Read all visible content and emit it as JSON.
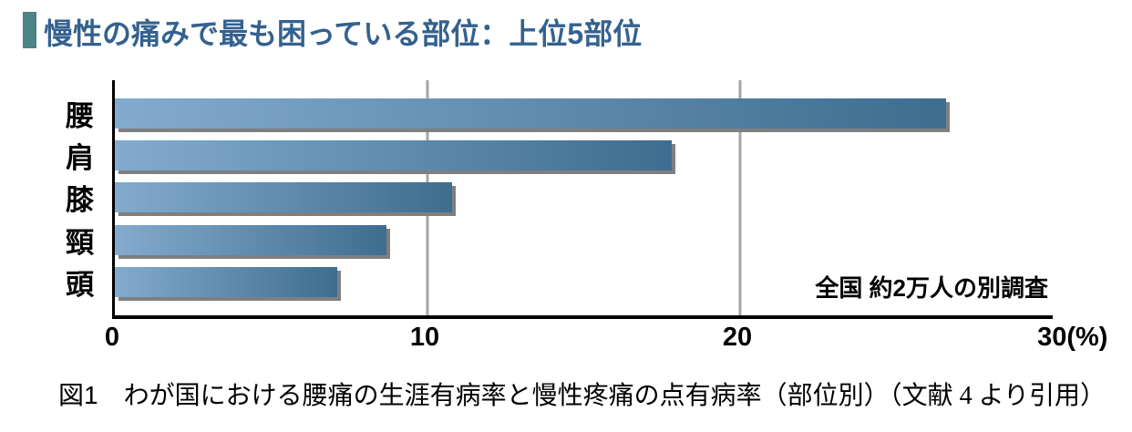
{
  "title": {
    "text": "慢性の痛みで最も困っている部位：上位5部位",
    "text_color": "#34618F",
    "marker_color": "#4C8384"
  },
  "chart_data": {
    "type": "bar",
    "orientation": "horizontal",
    "title": "慢性の痛みで最も困っている部位：上位5部位",
    "categories": [
      "腰",
      "肩",
      "膝",
      "頸",
      "頭"
    ],
    "values": [
      26.6,
      17.8,
      10.8,
      8.7,
      7.1
    ],
    "unit": "%",
    "xlim": [
      0,
      30
    ],
    "x_ticks": [
      {
        "label": "0",
        "value": 0
      },
      {
        "label": "10",
        "value": 10
      },
      {
        "label": "20",
        "value": 20
      },
      {
        "label": "30(%)",
        "value": 30
      }
    ],
    "grid_values": [
      10,
      20
    ],
    "grid_on": true,
    "annotation": "全国 約2万人の別調査",
    "colors": {
      "bar_gradient_start": "#83ABCE",
      "bar_gradient_end": "#3E6D90",
      "bar_shadow": "#7F7F7F",
      "gridline": "#A6A6A6",
      "axis": "#000000"
    }
  },
  "caption": {
    "main": "図1　わが国における腰痛の生涯有病率と慢性疼痛の点有病率（部位別）",
    "source": "（文献 4 より引用）"
  }
}
